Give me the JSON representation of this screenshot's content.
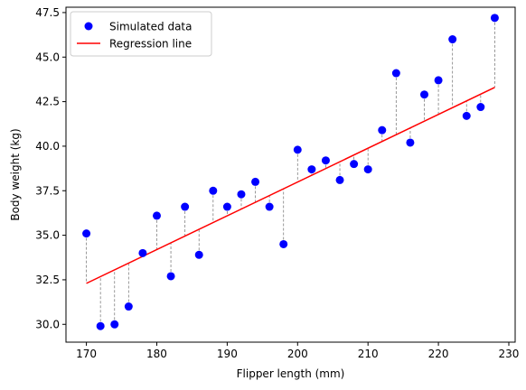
{
  "chart_data": {
    "type": "scatter",
    "title": "",
    "xlabel": "Flipper length (mm)",
    "ylabel": "Body weight (kg)",
    "xlim": [
      167.1,
      230.9
    ],
    "ylim": [
      29.0,
      47.8
    ],
    "xticks": [
      170,
      180,
      190,
      200,
      210,
      220,
      230
    ],
    "yticks": [
      30.0,
      32.5,
      35.0,
      37.5,
      40.0,
      42.5,
      45.0,
      47.5
    ],
    "grid": false,
    "legend_position": "top-left",
    "series": [
      {
        "name": "Simulated data",
        "kind": "points",
        "color": "#0000ff",
        "x": [
          170,
          172,
          174,
          176,
          178,
          180,
          182,
          184,
          186,
          188,
          190,
          192,
          194,
          196,
          198,
          200,
          202,
          204,
          206,
          208,
          210,
          212,
          214,
          216,
          218,
          220,
          222,
          224,
          226,
          228
        ],
        "y": [
          35.1,
          29.9,
          30.0,
          31.0,
          34.0,
          36.1,
          32.7,
          36.6,
          33.9,
          37.5,
          36.6,
          37.3,
          38.0,
          36.6,
          34.5,
          39.8,
          38.7,
          39.2,
          38.1,
          39.0,
          38.7,
          40.9,
          44.1,
          40.2,
          42.9,
          43.7,
          46.0,
          41.7,
          42.2,
          47.2
        ]
      },
      {
        "name": "Regression line",
        "kind": "line",
        "color": "#ff0000",
        "x": [
          170,
          228
        ],
        "y": [
          32.3,
          43.3
        ]
      }
    ],
    "residual_line_color": "#808080"
  }
}
